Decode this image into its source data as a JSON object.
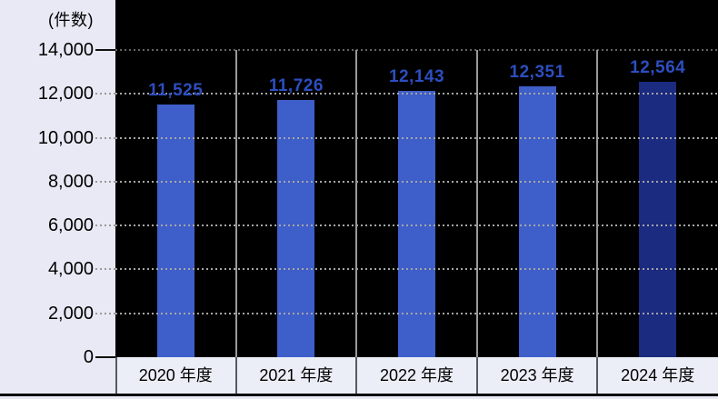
{
  "chart_data": {
    "type": "bar",
    "title": "",
    "unit_label": "(件数)",
    "categories": [
      "2020 年度",
      "2021 年度",
      "2022 年度",
      "2023 年度",
      "2024 年度"
    ],
    "values": [
      11525,
      11726,
      12143,
      12351,
      12564
    ],
    "value_labels": [
      "11,525",
      "11,726",
      "12,143",
      "12,351",
      "12,564"
    ],
    "ylim": [
      0,
      14000
    ],
    "ytick_step": 2000,
    "yticks": [
      {
        "value": 0,
        "label": "0",
        "tick_style": "solid"
      },
      {
        "value": 2000,
        "label": "2,000",
        "tick_style": "dotted"
      },
      {
        "value": 4000,
        "label": "4,000",
        "tick_style": "dotted"
      },
      {
        "value": 6000,
        "label": "6,000",
        "tick_style": "dotted"
      },
      {
        "value": 8000,
        "label": "8,000",
        "tick_style": "dotted"
      },
      {
        "value": 10000,
        "label": "10,000",
        "tick_style": "dotted"
      },
      {
        "value": 12000,
        "label": "12,000",
        "tick_style": "dotted"
      },
      {
        "value": 14000,
        "label": "14,000",
        "tick_style": "solid"
      }
    ],
    "grid": "horizontal dotted, drawn over bars",
    "legend": "none",
    "colors": {
      "bar_default": "#3e5ec9",
      "bar_last": "#1b2b80",
      "value_label": "#2d4ec0",
      "plot_background": "#000000",
      "page_background": "#e8e9f4",
      "strip_background": "#ebeef7",
      "grid_line": "#a6a6a6",
      "grid_line_top": "#646464",
      "column_separator": "#9a9a9a",
      "strip_separator": "#555a60",
      "axis_text": "#000000"
    }
  }
}
